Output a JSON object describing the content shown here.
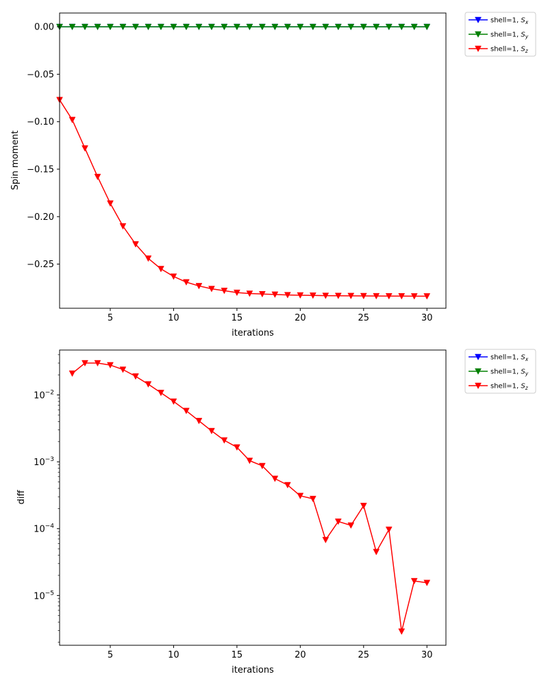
{
  "chart_data": [
    {
      "type": "line",
      "xlabel": "iterations",
      "ylabel": "Spin moment",
      "xlim": [
        1,
        31.5
      ],
      "ylim": [
        -0.2965,
        0.0145
      ],
      "yscale": "linear",
      "xticks": [
        5,
        10,
        15,
        20,
        25,
        30
      ],
      "xtick_labels": [
        "5",
        "10",
        "15",
        "20",
        "25",
        "30"
      ],
      "yticks": [
        0.0,
        -0.05,
        -0.1,
        -0.15,
        -0.2,
        -0.25
      ],
      "ytick_labels": [
        "0.00",
        "−0.05",
        "−0.10",
        "−0.15",
        "−0.20",
        "−0.25"
      ],
      "legend": {
        "placement": "outside-top-right",
        "entries": [
          {
            "prefix": "shell=1, ",
            "symbol": "S",
            "sub": "x",
            "color": "#0000ff"
          },
          {
            "prefix": "shell=1, ",
            "symbol": "S",
            "sub": "y",
            "color": "#008000"
          },
          {
            "prefix": "shell=1, ",
            "symbol": "S",
            "sub": "z",
            "color": "#ff0000"
          }
        ]
      },
      "x": [
        1,
        2,
        3,
        4,
        5,
        6,
        7,
        8,
        9,
        10,
        11,
        12,
        13,
        14,
        15,
        16,
        17,
        18,
        19,
        20,
        21,
        22,
        23,
        24,
        25,
        26,
        27,
        28,
        29,
        30
      ],
      "series": [
        {
          "color": "#0000ff",
          "marker": "triangle-down",
          "values": [
            0,
            0,
            0,
            0,
            0,
            0,
            0,
            0,
            0,
            0,
            0,
            0,
            0,
            0,
            0,
            0,
            0,
            0,
            0,
            0,
            0,
            0,
            0,
            0,
            0,
            0,
            0,
            0,
            0,
            0
          ]
        },
        {
          "color": "#008000",
          "marker": "triangle-down",
          "values": [
            0,
            0,
            0,
            0,
            0,
            0,
            0,
            0,
            0,
            0,
            0,
            0,
            0,
            0,
            0,
            0,
            0,
            0,
            0,
            0,
            0,
            0,
            0,
            0,
            0,
            0,
            0,
            0,
            0,
            0
          ]
        },
        {
          "color": "#ff0000",
          "marker": "triangle-down",
          "values": [
            -0.077,
            -0.098,
            -0.128,
            -0.158,
            -0.186,
            -0.21,
            -0.229,
            -0.244,
            -0.255,
            -0.263,
            -0.269,
            -0.273,
            -0.276,
            -0.278,
            -0.28,
            -0.281,
            -0.2815,
            -0.282,
            -0.2825,
            -0.2828,
            -0.283,
            -0.2832,
            -0.2833,
            -0.2834,
            -0.2835,
            -0.2836,
            -0.2837,
            -0.2837,
            -0.2838,
            -0.2838
          ]
        }
      ]
    },
    {
      "type": "line",
      "xlabel": "iterations",
      "ylabel": "diff",
      "xlim": [
        1,
        31.5
      ],
      "ylim": [
        1.8e-06,
        0.047
      ],
      "yscale": "log",
      "xticks": [
        5,
        10,
        15,
        20,
        25,
        30
      ],
      "xtick_labels": [
        "5",
        "10",
        "15",
        "20",
        "25",
        "30"
      ],
      "yticks_major": [
        {
          "base": "10",
          "exp": "−2",
          "value": 0.01
        },
        {
          "base": "10",
          "exp": "−3",
          "value": 0.001
        },
        {
          "base": "10",
          "exp": "−4",
          "value": 0.0001
        },
        {
          "base": "10",
          "exp": "−5",
          "value": 1e-05
        }
      ],
      "legend": {
        "placement": "outside-top-right",
        "entries": [
          {
            "prefix": "shell=1, ",
            "symbol": "S",
            "sub": "x",
            "color": "#0000ff"
          },
          {
            "prefix": "shell=1, ",
            "symbol": "S",
            "sub": "y",
            "color": "#008000"
          },
          {
            "prefix": "shell=1, ",
            "symbol": "S",
            "sub": "z",
            "color": "#ff0000"
          }
        ]
      },
      "x": [
        2,
        3,
        4,
        5,
        6,
        7,
        8,
        9,
        10,
        11,
        12,
        13,
        14,
        15,
        16,
        17,
        18,
        19,
        20,
        21,
        22,
        23,
        24,
        25,
        26,
        27,
        28,
        29,
        30
      ],
      "series": [
        {
          "color": "#ff0000",
          "marker": "triangle-down",
          "values": [
            0.021,
            0.03,
            0.03,
            0.028,
            0.024,
            0.019,
            0.0145,
            0.0108,
            0.008,
            0.0058,
            0.0041,
            0.0029,
            0.0021,
            0.00165,
            0.00104,
            0.00087,
            0.00056,
            0.00045,
            0.00031,
            0.00028,
            6.8e-05,
            0.000128,
            0.000112,
            0.00022,
            4.5e-05,
            9.7e-05,
            2.9e-06,
            1.65e-05,
            1.55e-05
          ]
        }
      ]
    }
  ]
}
